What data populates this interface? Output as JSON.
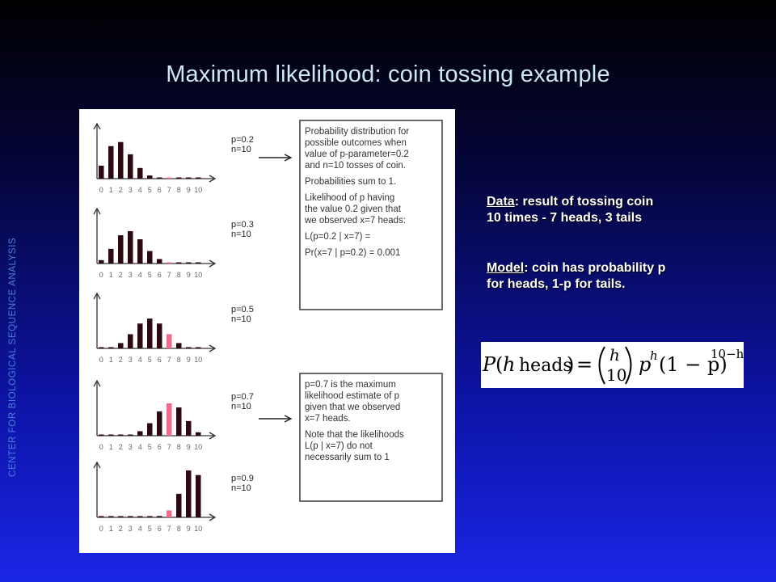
{
  "slide": {
    "title": "Maximum likelihood: coin tossing example",
    "side_label": "CENTER FOR BIOLOGICAL SEQUENCE ANALYSIS"
  },
  "data_note": {
    "key": "Data",
    "line1_rest": ": result of tossing coin",
    "line2": "10 times -  7 heads, 3 tails"
  },
  "model_note": {
    "key": "Model",
    "line1_rest": ": coin has probability p",
    "line2": "for heads, 1-p for tails."
  },
  "formula": {
    "lhs_p": "P",
    "lhs_paren_open": "(",
    "lhs_h": "h",
    "lhs_word": "heads",
    "lhs_paren_close": ")",
    "equals": "=",
    "binom_top": "h",
    "binom_bottom": "10",
    "rhs_p": "p",
    "rhs_h_exp": "h",
    "rhs_one_minus_p": "(1 − p)",
    "rhs_exp": "10−h"
  },
  "figure": {
    "x_tick_labels": [
      "0",
      "1",
      "2",
      "3",
      "4",
      "5",
      "6",
      "7",
      "8",
      "9",
      "10"
    ],
    "highlight_color": "#f06a8c",
    "bar_color": "#2a0a10",
    "panels": [
      {
        "label_p": "p=0.2",
        "label_n": "n=10",
        "values": [
          0.107,
          0.268,
          0.302,
          0.201,
          0.088,
          0.026,
          0.006,
          0.001,
          0.0001,
          0.0,
          0.0
        ]
      },
      {
        "label_p": "p=0.3",
        "label_n": "n=10",
        "values": [
          0.028,
          0.121,
          0.233,
          0.267,
          0.2,
          0.103,
          0.037,
          0.009,
          0.001,
          0.0001,
          0.0
        ]
      },
      {
        "label_p": "p=0.5",
        "label_n": "n=10",
        "values": [
          0.001,
          0.01,
          0.044,
          0.117,
          0.205,
          0.246,
          0.205,
          0.117,
          0.044,
          0.01,
          0.001
        ]
      },
      {
        "label_p": "p=0.7",
        "label_n": "n=10",
        "values": [
          0.0,
          0.0001,
          0.001,
          0.009,
          0.037,
          0.103,
          0.2,
          0.267,
          0.233,
          0.121,
          0.028
        ]
      },
      {
        "label_p": "p=0.9",
        "label_n": "n=10",
        "values": [
          0.0,
          0.0,
          0.0,
          0.0,
          0.0001,
          0.001,
          0.011,
          0.057,
          0.194,
          0.387,
          0.349
        ]
      }
    ],
    "box1_lines": [
      "Probability distribution for",
      "possible outcomes when",
      "value of p-parameter=0.2",
      "and n=10 tosses of coin.",
      "",
      "Probabilities sum to 1.",
      "",
      "Likelihood of p having",
      "the value 0.2 given that",
      "we observed x=7 heads:",
      "",
      "L(p=0.2 | x=7)  =",
      "",
      "Pr(x=7 | p=0.2) = 0.001"
    ],
    "box2_lines": [
      "p=0.7 is the maximum",
      "likelihood estimate of p",
      "given that we observed",
      "x=7 heads.",
      "",
      "Note that the likelihoods",
      "L(p | x=7) do not",
      "necessarily sum to 1"
    ]
  }
}
